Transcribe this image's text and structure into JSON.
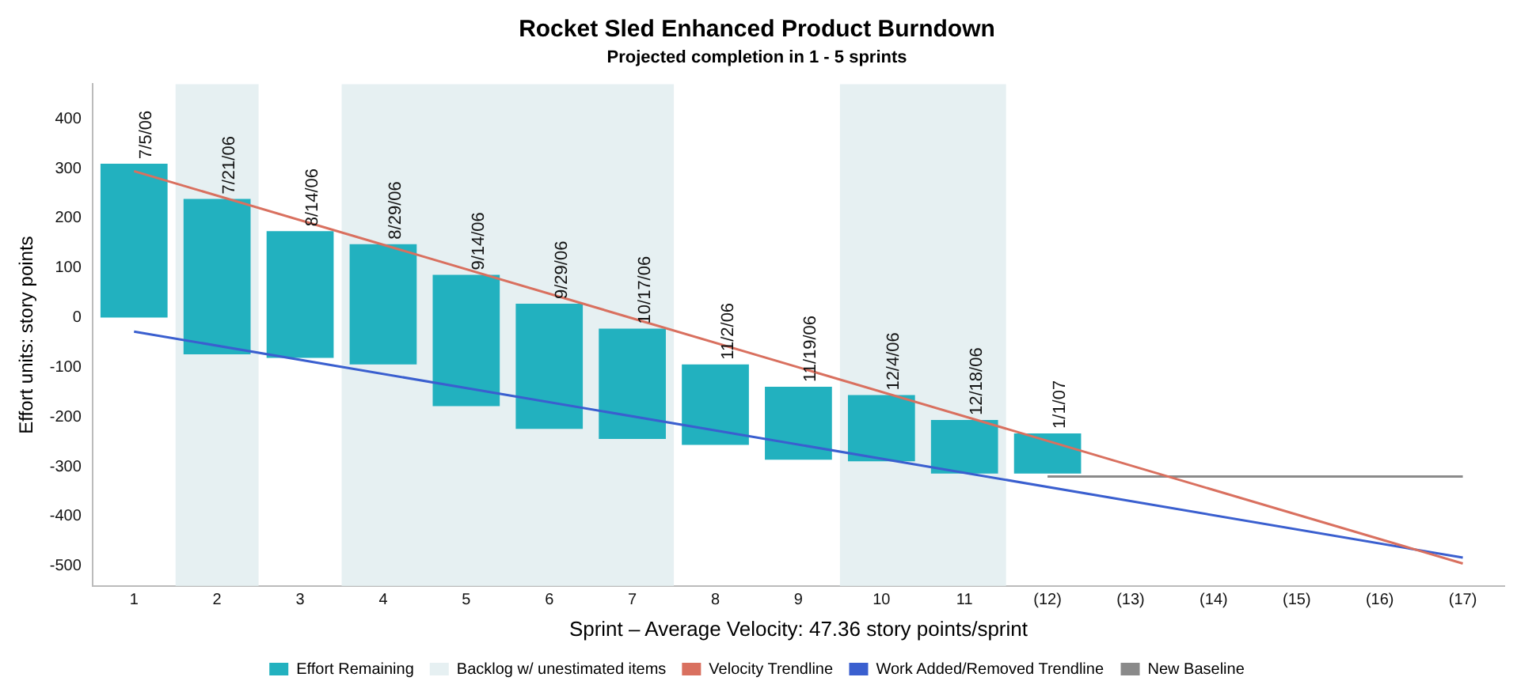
{
  "chart_data": {
    "type": "bar",
    "title": "Rocket Sled Enhanced Product Burndown",
    "subtitle": "Projected completion in 1 - 5 sprints",
    "xlabel": "Sprint – Average Velocity: 47.36 story points/sprint",
    "ylabel": "Effort units: story points",
    "categories": [
      "1",
      "2",
      "3",
      "4",
      "5",
      "6",
      "7",
      "8",
      "9",
      "10",
      "11",
      "(12)",
      "(13)",
      "(14)",
      "(15)",
      "(16)",
      "(17)"
    ],
    "series": [
      {
        "name": "Effort Remaining",
        "color": "#22b1bf",
        "base": [
          0,
          -74,
          -81,
          -94,
          -178,
          -224,
          -244,
          -256,
          -286,
          -289,
          -314,
          -314,
          null,
          null,
          null,
          null,
          null
        ],
        "values": [
          310,
          313,
          255,
          242,
          264,
          252,
          222,
          162,
          147,
          133,
          108,
          81,
          null,
          null,
          null,
          null,
          null
        ]
      },
      {
        "name": "Velocity Trendline",
        "type": "line",
        "color": "#d9705f",
        "x": [
          "1",
          "(17)"
        ],
        "values": [
          295,
          -495
        ]
      },
      {
        "name": "Work Added/Removed Trendline",
        "type": "line",
        "color": "#3a5fcf",
        "x": [
          "1",
          "(17)"
        ],
        "values": [
          -28,
          -483
        ]
      },
      {
        "name": "New Baseline",
        "type": "line",
        "color": "#8a8a8a",
        "x": [
          "(12)",
          "(17)"
        ],
        "values": [
          -320,
          -320
        ]
      }
    ],
    "bands": [
      {
        "axis": "x",
        "from": "2",
        "to": "2",
        "label": "Backlog w/ unestimated items",
        "color": "#e6f0f2"
      },
      {
        "axis": "x",
        "from": "4",
        "to": "7",
        "color": "#e6f0f2"
      },
      {
        "axis": "x",
        "from": "10",
        "to": "11",
        "color": "#e6f0f2"
      }
    ],
    "annotations": [
      {
        "text": "7/5/06",
        "x": "1",
        "y": 310
      },
      {
        "text": "7/21/06",
        "x": "2",
        "y": 239
      },
      {
        "text": "8/14/06",
        "x": "3",
        "y": 174
      },
      {
        "text": "8/29/06",
        "x": "4",
        "y": 148
      },
      {
        "text": "9/14/06",
        "x": "5",
        "y": 86
      },
      {
        "text": "9/29/06",
        "x": "6",
        "y": 28
      },
      {
        "text": "10/17/06",
        "x": "7",
        "y": -22
      },
      {
        "text": "11/2/06",
        "x": "8",
        "y": -94
      },
      {
        "text": "11/19/06",
        "x": "9",
        "y": -139
      },
      {
        "text": "12/4/06",
        "x": "10",
        "y": -156
      },
      {
        "text": "12/18/06",
        "x": "11",
        "y": -206
      },
      {
        "text": "1/1/07",
        "x": "(12)",
        "y": -233
      }
    ],
    "ylim": [
      -540,
      470
    ],
    "yticks": [
      -500,
      -400,
      -300,
      -200,
      -100,
      0,
      100,
      200,
      300,
      400
    ],
    "grid": false,
    "legend": "bottom",
    "marker": "none"
  }
}
